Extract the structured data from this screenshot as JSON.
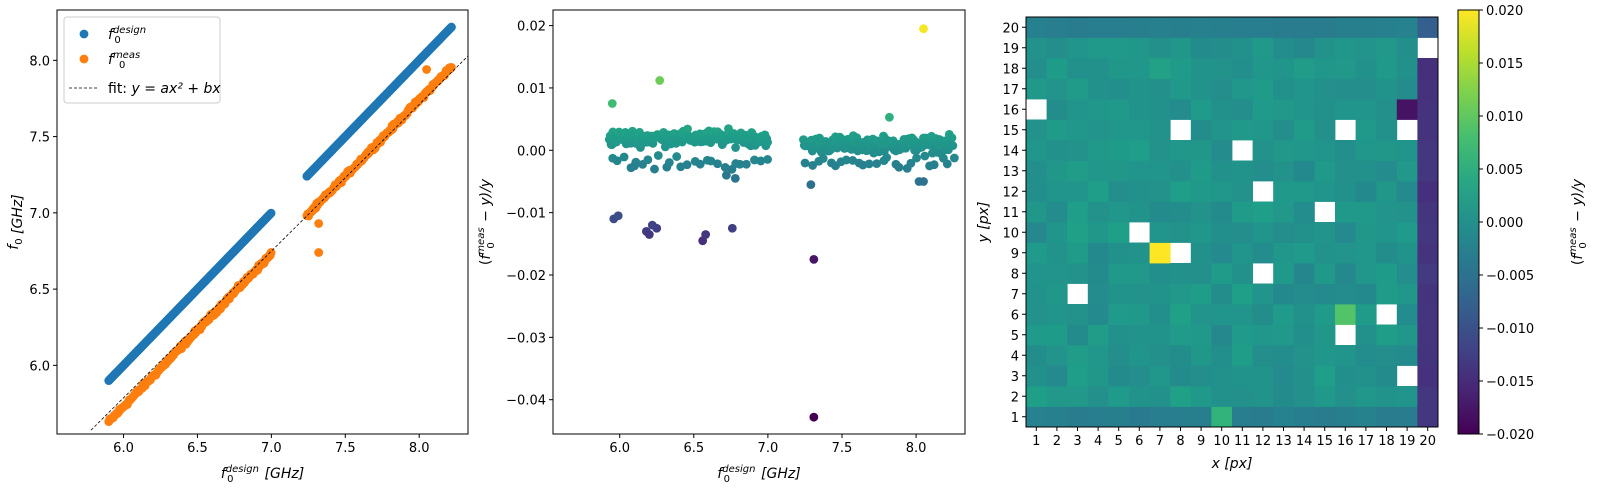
{
  "chart_data": [
    {
      "type": "scatter",
      "xlabel": {
        "base": "f",
        "sub": "0",
        "sup": "design",
        "unit": "[GHz]"
      },
      "ylabel": {
        "base": "f",
        "sub": "0",
        "unit": "[GHz]"
      },
      "xlim": [
        5.55,
        8.33
      ],
      "ylim": [
        5.55,
        8.33
      ],
      "xticks": [
        "6.0",
        "6.5",
        "7.0",
        "7.5",
        "8.0"
      ],
      "yticks": [
        "6.0",
        "6.5",
        "7.0",
        "7.5",
        "8.0"
      ],
      "grid": false,
      "legend": {
        "position": "upper-left",
        "entries": [
          {
            "base": "f",
            "sub": "0",
            "sup": "design",
            "color": "#1f77b4",
            "kind": "marker"
          },
          {
            "base": "f",
            "sub": "0",
            "sup": "meas",
            "color": "#ff7f0e",
            "kind": "marker"
          },
          {
            "text_prefix": "fit: ",
            "formula": "y = ax² + bx",
            "color": "#000000",
            "kind": "dashed-line"
          }
        ]
      },
      "series": [
        {
          "color": "#1f77b4",
          "segments": [
            {
              "x_start": 5.9,
              "x_end": 7.0,
              "y_offset": 0.0
            },
            {
              "x_start": 7.24,
              "x_end": 8.22,
              "y_offset": 0.0
            }
          ]
        },
        {
          "color": "#ff7f0e",
          "segments": [
            {
              "x_start": 5.9,
              "x_end": 7.0,
              "y_offset": -0.27
            },
            {
              "x_start": 7.24,
              "x_end": 8.22,
              "y_offset": -0.26
            }
          ],
          "outliers": [
            [
              7.32,
              6.74
            ],
            [
              7.32,
              6.93
            ],
            [
              8.05,
              7.94
            ]
          ]
        },
        {
          "color": "#000000",
          "style": "dashed",
          "fit": {
            "x_start": 5.78,
            "x_end": 8.33,
            "a": 0.0,
            "b": 0.962
          }
        }
      ]
    },
    {
      "type": "scatter",
      "xlabel": {
        "base": "f",
        "sub": "0",
        "sup": "design",
        "unit": "[GHz]"
      },
      "ylabel": {
        "open": "(",
        "base": "f",
        "sub": "0",
        "sup": "meas",
        "rest": " − y)/y"
      },
      "xlim": [
        5.55,
        8.33
      ],
      "ylim": [
        -0.0455,
        0.0225
      ],
      "xticks": [
        "6.0",
        "6.5",
        "7.0",
        "7.5",
        "8.0"
      ],
      "yticks": [
        "0.02",
        "0.01",
        "0.00",
        "−0.01",
        "−0.02",
        "−0.03",
        "−0.04"
      ],
      "grid": false,
      "colormap": "viridis",
      "clim": [
        -0.02,
        0.02
      ],
      "x_ranges": [
        [
          5.93,
          7.0
        ],
        [
          7.24,
          8.25
        ]
      ],
      "outliers": [
        [
          5.96,
          -0.011
        ],
        [
          5.99,
          -0.0105
        ],
        [
          6.18,
          -0.013
        ],
        [
          6.2,
          -0.0135
        ],
        [
          6.22,
          -0.012
        ],
        [
          6.25,
          -0.0125
        ],
        [
          6.56,
          -0.0145
        ],
        [
          6.58,
          -0.0135
        ],
        [
          6.76,
          -0.0125
        ],
        [
          7.31,
          -0.0175
        ],
        [
          7.31,
          -0.0428
        ],
        [
          7.29,
          -0.0055
        ],
        [
          5.95,
          0.0075
        ],
        [
          6.27,
          0.0112
        ],
        [
          7.82,
          0.0053
        ],
        [
          8.05,
          0.0195
        ],
        [
          8.02,
          -0.005
        ],
        [
          8.05,
          -0.005
        ],
        [
          6.78,
          -0.0045
        ],
        [
          6.72,
          -0.004
        ],
        [
          6.1,
          -0.0025
        ]
      ]
    },
    {
      "type": "heatmap",
      "xlabel": {
        "base": "x",
        "unit": "[px]"
      },
      "ylabel": {
        "base": "y",
        "unit": "[px]"
      },
      "x_categories": [
        "1",
        "2",
        "3",
        "4",
        "5",
        "6",
        "7",
        "8",
        "9",
        "10",
        "11",
        "12",
        "13",
        "14",
        "15",
        "16",
        "17",
        "18",
        "19",
        "20"
      ],
      "y_categories": [
        "1",
        "2",
        "3",
        "4",
        "5",
        "6",
        "7",
        "8",
        "9",
        "10",
        "11",
        "12",
        "13",
        "14",
        "15",
        "16",
        "17",
        "18",
        "19",
        "20"
      ],
      "colormap": "viridis",
      "clim": [
        -0.02,
        0.02
      ],
      "colorbar": {
        "ticks": [
          "0.020",
          "0.015",
          "0.010",
          "0.005",
          "0.000",
          "−0.005",
          "−0.010",
          "−0.015",
          "−0.020"
        ],
        "label": {
          "open": "(",
          "base": "f",
          "sub": "0",
          "sup": "meas",
          "rest": " − y)/y"
        }
      },
      "missing": [
        [
          1,
          16
        ],
        [
          8,
          15
        ],
        [
          11,
          14
        ],
        [
          12,
          12
        ],
        [
          15,
          11
        ],
        [
          6,
          10
        ],
        [
          8,
          9
        ],
        [
          12,
          8
        ],
        [
          3,
          7
        ],
        [
          18,
          6
        ],
        [
          16,
          5
        ],
        [
          19,
          3
        ],
        [
          20,
          19
        ],
        [
          16,
          15
        ],
        [
          19,
          15
        ]
      ],
      "special": [
        [
          7,
          9,
          0.02
        ],
        [
          16,
          6,
          0.009
        ],
        [
          10,
          1,
          0.006
        ],
        [
          19,
          16,
          -0.018
        ],
        [
          20,
          20,
          -0.008
        ]
      ],
      "last_column_value": -0.014
    }
  ]
}
